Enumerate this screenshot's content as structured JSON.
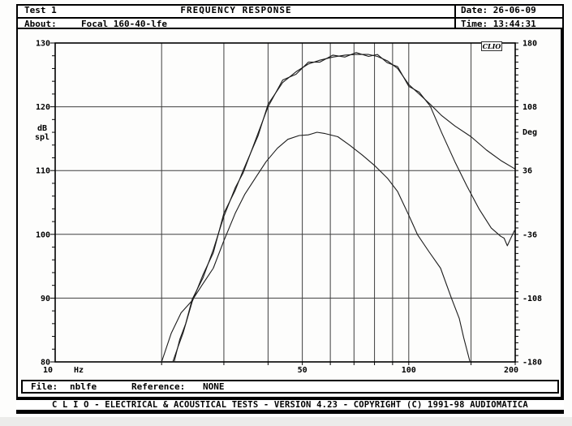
{
  "window": {
    "test_label": "Test 1",
    "title": "FREQUENCY RESPONSE",
    "date_label": "Date:",
    "date_value": "26-06-09",
    "time_label": "Time:",
    "time_value": "13:44:31",
    "about_label": "About:",
    "about_value": "Focal 160-40-lfe",
    "file_label": "File:",
    "file_value": "nblfe",
    "reference_label": "Reference:",
    "reference_value": "NONE",
    "status_bar": "C L I O  -  ELECTRICAL & ACOUSTICAL TESTS  -  VERSION 4.23  -  COPYRIGHT (C) 1991-98 AUDIOMATICA",
    "logo_badge": "CLIO"
  },
  "colors": {
    "background": "#ffffff",
    "ink": "#000000",
    "grid": "#3f3f3f",
    "frame": "#000000",
    "trace": "#1c1c1c"
  },
  "chart_data": {
    "type": "line",
    "title": "FREQUENCY RESPONSE",
    "x_axis": {
      "unit": "Hz",
      "scale": "log",
      "min": 10,
      "max": 200,
      "tick_labels": [
        10,
        50,
        100,
        200
      ],
      "gridlines": [
        20,
        30,
        40,
        50,
        60,
        70,
        80,
        90,
        100,
        150
      ]
    },
    "y_axis_left": {
      "label": "dB spl",
      "min": 80,
      "max": 130,
      "ticks": [
        130,
        120,
        110,
        100,
        90,
        80
      ],
      "gridlines": [
        120,
        110,
        100,
        90
      ],
      "minor_step": 2
    },
    "y_axis_right": {
      "label": "Deg",
      "min": -180,
      "max": 180,
      "ticks": [
        180,
        108,
        36,
        -36,
        -108,
        -180
      ],
      "minor_step": 7.2
    },
    "series": [
      {
        "name": "magnitude-trace-1",
        "axis": "left",
        "points": [
          [
            21.5,
            80
          ],
          [
            22.3,
            82.5
          ],
          [
            23,
            84.5
          ],
          [
            24.4,
            89.4
          ],
          [
            26.2,
            93.7
          ],
          [
            28,
            97.1
          ],
          [
            30,
            103.3
          ],
          [
            32.3,
            106.9
          ],
          [
            34,
            110
          ],
          [
            37.5,
            115.5
          ],
          [
            40,
            120.4
          ],
          [
            44,
            123.8
          ],
          [
            48,
            125.5
          ],
          [
            52,
            126.7
          ],
          [
            56,
            127.3
          ],
          [
            61,
            127.8
          ],
          [
            66,
            128.1
          ],
          [
            71,
            128.2
          ],
          [
            77,
            128.2
          ],
          [
            81.5,
            127.9
          ],
          [
            87,
            127.2
          ],
          [
            93,
            126.0
          ],
          [
            100,
            123.5
          ],
          [
            107,
            122.0
          ],
          [
            115,
            120.4
          ],
          [
            124,
            118.6
          ],
          [
            135,
            117.0
          ],
          [
            150,
            115.3
          ],
          [
            166,
            113.2
          ],
          [
            183,
            111.5
          ],
          [
            199,
            110.3
          ]
        ]
      },
      {
        "name": "magnitude-trace-2",
        "axis": "left",
        "points": [
          [
            21.7,
            80
          ],
          [
            22.5,
            83.5
          ],
          [
            23.4,
            86.0
          ],
          [
            24.4,
            89.8
          ],
          [
            26.2,
            93.2
          ],
          [
            28,
            97.6
          ],
          [
            30,
            102.8
          ],
          [
            32.3,
            107.3
          ],
          [
            34,
            109.6
          ],
          [
            37.5,
            115.9
          ],
          [
            40,
            120.0
          ],
          [
            44,
            124.2
          ],
          [
            48,
            125.1
          ],
          [
            52,
            127.0
          ],
          [
            56,
            127.0
          ],
          [
            61,
            128.1
          ],
          [
            66,
            127.8
          ],
          [
            71,
            128.5
          ],
          [
            77,
            127.9
          ],
          [
            81.5,
            128.2
          ],
          [
            87,
            126.9
          ],
          [
            93,
            126.3
          ],
          [
            100,
            123.2
          ],
          [
            107,
            122.3
          ],
          [
            115,
            120.1
          ],
          [
            124,
            115.9
          ],
          [
            135,
            111.4
          ],
          [
            146,
            107.6
          ],
          [
            158,
            104.0
          ],
          [
            171,
            101.0
          ],
          [
            182,
            99.7
          ],
          [
            186,
            99.4
          ],
          [
            190,
            98.2
          ],
          [
            194,
            99.3
          ],
          [
            199,
            100.6
          ]
        ]
      },
      {
        "name": "lower-trace",
        "axis": "left",
        "points": [
          [
            20,
            80
          ],
          [
            21.3,
            84.5
          ],
          [
            22.7,
            87.7
          ],
          [
            24.3,
            89.5
          ],
          [
            26,
            92
          ],
          [
            28,
            94.7
          ],
          [
            30,
            99
          ],
          [
            32.3,
            103.3
          ],
          [
            34.4,
            106.3
          ],
          [
            37,
            109
          ],
          [
            39.5,
            111.4
          ],
          [
            42.5,
            113.5
          ],
          [
            45.5,
            114.9
          ],
          [
            49,
            115.5
          ],
          [
            52,
            115.6
          ],
          [
            55,
            116
          ],
          [
            58,
            115.8
          ],
          [
            63,
            115.3
          ],
          [
            68,
            114
          ],
          [
            74,
            112.4
          ],
          [
            80,
            110.8
          ],
          [
            87,
            108.8
          ],
          [
            93,
            106.7
          ],
          [
            100,
            103
          ],
          [
            106,
            99.9
          ],
          [
            114,
            97.3
          ],
          [
            123,
            94.7
          ],
          [
            132,
            90
          ],
          [
            139,
            86.8
          ],
          [
            143,
            83.8
          ],
          [
            149,
            80
          ]
        ]
      }
    ]
  }
}
